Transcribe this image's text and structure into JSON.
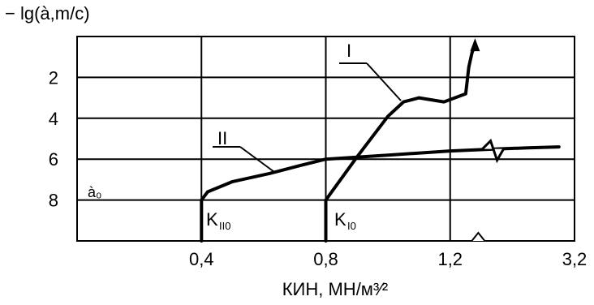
{
  "chart_data": {
    "type": "line",
    "ylabel": "− lg(à,m/c)",
    "xlabel": "КИН, МН/м³⁄²",
    "x_ticks": [
      "0,4",
      "0,8",
      "1,2",
      "3,2"
    ],
    "x_tick_values": [
      0.4,
      0.8,
      1.2,
      1.6
    ],
    "y_ticks": [
      "2",
      "4",
      "6",
      "8"
    ],
    "y_tick_values": [
      2,
      4,
      6,
      8
    ],
    "xlim": [
      0,
      1.6
    ],
    "ylim": [
      10,
      0
    ],
    "axis_break_x": "between 1.2 and 3.2",
    "grid": true,
    "series": [
      {
        "name": "I",
        "x": [
          0.8,
          0.8,
          0.9,
          1.0,
          1.05,
          1.1,
          1.18,
          1.25,
          1.26,
          1.27,
          1.28
        ],
        "y": [
          10,
          8.0,
          5.9,
          3.9,
          3.2,
          3.0,
          3.2,
          2.8,
          1.5,
          0.8,
          0.4
        ]
      },
      {
        "name": "II",
        "x": [
          0.4,
          0.4,
          0.42,
          0.5,
          0.62,
          0.72,
          0.8,
          1.0,
          1.2,
          1.35,
          1.45,
          1.55
        ],
        "y": [
          10,
          8.0,
          7.6,
          7.1,
          6.7,
          6.3,
          6.0,
          5.8,
          5.6,
          5.5,
          5.45,
          5.4
        ]
      }
    ],
    "annotations": {
      "a0": "à₀",
      "k_ii": "K",
      "k_ii_sub": "II0",
      "k_i": "K",
      "k_i_sub": "I0"
    }
  }
}
